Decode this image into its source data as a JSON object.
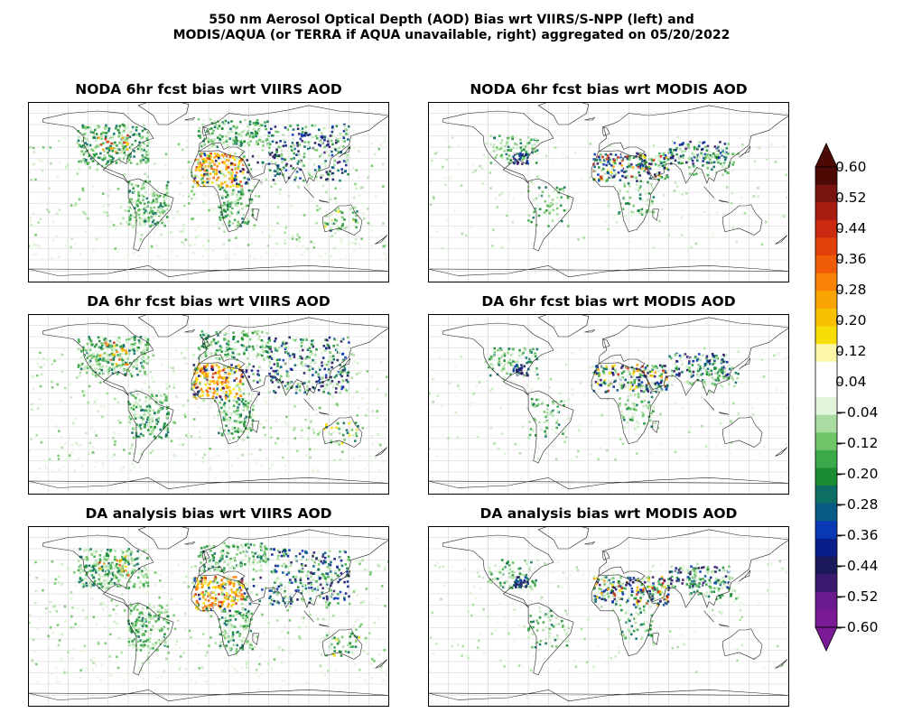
{
  "figure": {
    "title_line1": "550 nm Aerosol Optical Depth (AOD) Bias wrt VIIRS/S-NPP (left) and",
    "title_line2": "MODIS/AQUA (or TERRA if AQUA unavailable, right) aggregated on 05/20/2022"
  },
  "panels": [
    {
      "title": "NODA 6hr fcst bias wrt VIIRS AOD"
    },
    {
      "title": "NODA 6hr fcst bias wrt MODIS AOD"
    },
    {
      "title": "DA 6hr fcst bias wrt VIIRS AOD"
    },
    {
      "title": "DA 6hr fcst bias wrt MODIS AOD"
    },
    {
      "title": "DA analysis bias wrt VIIRS AOD"
    },
    {
      "title": "DA analysis bias wrt MODIS AOD"
    }
  ],
  "colorbar": {
    "ticks": [
      "0.60",
      "0.52",
      "0.44",
      "0.36",
      "0.28",
      "0.20",
      "0.12",
      "0.04",
      "−0.04",
      "−0.12",
      "−0.20",
      "−0.28",
      "−0.36",
      "−0.44",
      "−0.52",
      "−0.60"
    ],
    "colors": [
      "#4d0a05",
      "#7a1410",
      "#a81c12",
      "#cc2a10",
      "#e2400a",
      "#f05c05",
      "#f78204",
      "#f8a402",
      "#f8c202",
      "#f8de06",
      "#fdf8a8",
      "#ffffff",
      "#ffffff",
      "#e2f4dc",
      "#a8dca0",
      "#70c468",
      "#3ba84a",
      "#1a8c32",
      "#0d6e64",
      "#0a5a88",
      "#0838b4",
      "#0a1e8a",
      "#1a1a5a",
      "#3a1a6e",
      "#6a1a8c",
      "#7a1a96"
    ],
    "top_color": "#4d0a05",
    "bottom_color": "#7a1a96"
  }
}
